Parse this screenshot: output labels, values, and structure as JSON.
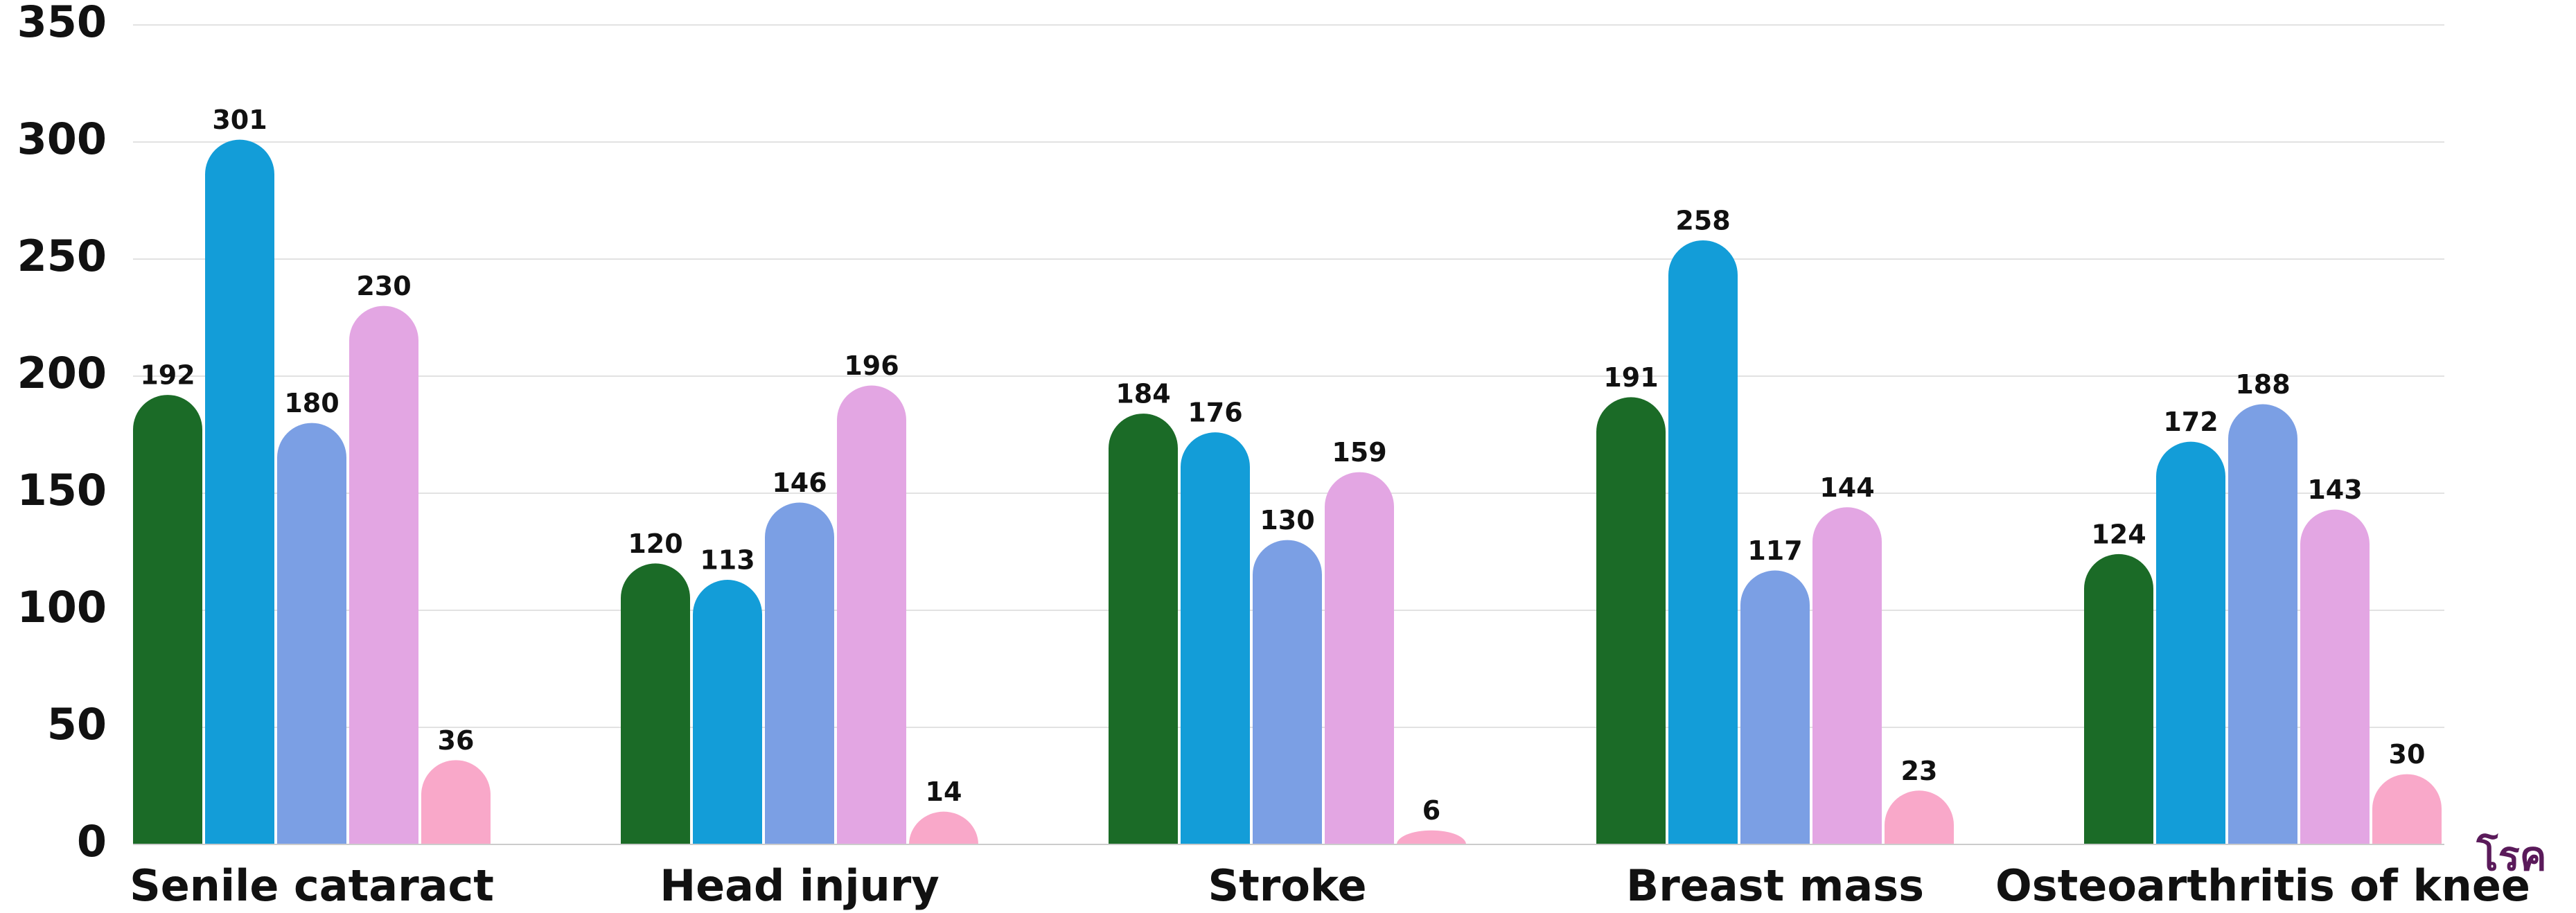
{
  "chart_data": {
    "type": "bar",
    "x_label": "โรค",
    "categories": [
      "Senile cataract",
      "Head injury",
      "Stroke",
      "Breast mass",
      "Osteoarthritis of knee"
    ],
    "series": [
      {
        "color": "#1b6b27",
        "values": [
          192,
          120,
          184,
          191,
          124
        ]
      },
      {
        "color": "#139dd8",
        "values": [
          301,
          113,
          176,
          258,
          172
        ]
      },
      {
        "color": "#7b9fe4",
        "values": [
          180,
          146,
          130,
          117,
          188
        ]
      },
      {
        "color": "#e3a6e3",
        "values": [
          230,
          196,
          159,
          144,
          143
        ]
      },
      {
        "color": "#f9a8c9",
        "values": [
          36,
          14,
          6,
          23,
          30
        ]
      }
    ],
    "ylim": [
      0,
      350
    ],
    "yticks": [
      0,
      50,
      100,
      150,
      200,
      250,
      300,
      350
    ],
    "grid": true
  }
}
